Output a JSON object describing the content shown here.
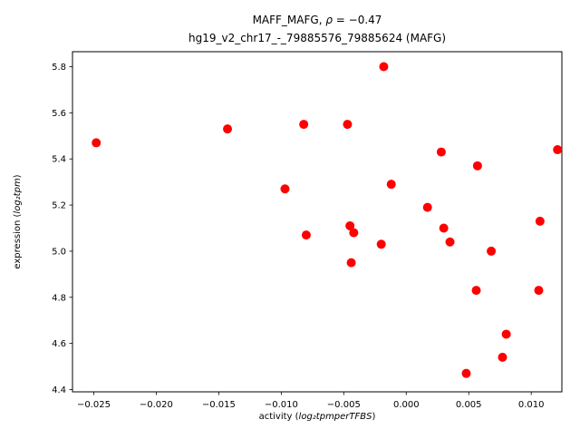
{
  "title_line1": {
    "prefix": "MAFF_MAFG, ",
    "math": "ρ",
    "suffix": " = −0.47"
  },
  "title_line2": "hg19_v2_chr17_-_79885576_79885624 (MAFG)",
  "chart_data": {
    "type": "scatter",
    "title": "MAFF_MAFG, ρ = −0.47\nhg19_v2_chr17_-_79885576_79885624 (MAFG)",
    "xlabel_prefix": "activity (",
    "xlabel_math": "log₂tpmperTFBS",
    "xlabel_suffix": ")",
    "ylabel_prefix": "expression (",
    "ylabel_math": "log₂tpm",
    "ylabel_suffix": ")",
    "xlim": [
      -0.0267,
      0.01245
    ],
    "ylim": [
      4.39,
      5.865
    ],
    "grid": false,
    "legend": "none",
    "marker_color": "#ff0000",
    "marker_radius": 5,
    "frame_color": "#000000",
    "x_ticks": [
      -0.025,
      -0.02,
      -0.015,
      -0.01,
      -0.005,
      0.0,
      0.005,
      0.01
    ],
    "x_tick_labels": [
      "−0.025",
      "−0.020",
      "−0.015",
      "−0.010",
      "−0.005",
      "0.000",
      "0.005",
      "0.010"
    ],
    "y_ticks": [
      4.4,
      4.6,
      4.8,
      5.0,
      5.2,
      5.4,
      5.6,
      5.8
    ],
    "y_tick_labels": [
      "4.4",
      "4.6",
      "4.8",
      "5.0",
      "5.2",
      "5.4",
      "5.6",
      "5.8"
    ],
    "points": [
      [
        -0.0248,
        5.47
      ],
      [
        -0.0143,
        5.53
      ],
      [
        -0.0097,
        5.27
      ],
      [
        -0.0082,
        5.55
      ],
      [
        -0.008,
        5.07
      ],
      [
        -0.0047,
        5.55
      ],
      [
        -0.0045,
        5.11
      ],
      [
        -0.0042,
        5.08
      ],
      [
        -0.0044,
        4.95
      ],
      [
        -0.0018,
        5.8
      ],
      [
        -0.002,
        5.03
      ],
      [
        -0.0012,
        5.29
      ],
      [
        0.0017,
        5.19
      ],
      [
        0.0028,
        5.43
      ],
      [
        0.003,
        5.1
      ],
      [
        0.0035,
        5.04
      ],
      [
        0.0048,
        4.47
      ],
      [
        0.0057,
        5.37
      ],
      [
        0.0056,
        4.83
      ],
      [
        0.0068,
        5.0
      ],
      [
        0.008,
        4.64
      ],
      [
        0.0077,
        4.54
      ],
      [
        0.0107,
        5.13
      ],
      [
        0.0106,
        4.83
      ],
      [
        0.0121,
        5.44
      ]
    ]
  }
}
